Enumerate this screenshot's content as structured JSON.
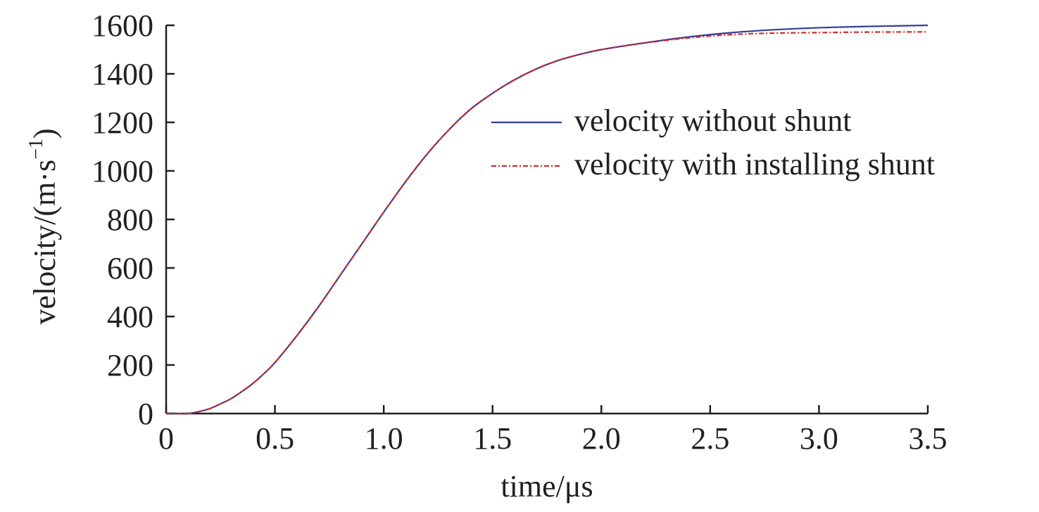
{
  "chart_data": {
    "type": "line",
    "xlabel": "time/μs",
    "ylabel_main": "velocity/(m·s",
    "ylabel_sup": "−1",
    "ylabel_close": ")",
    "xlim": [
      0,
      3.5
    ],
    "ylim": [
      0,
      1600
    ],
    "xticks": [
      {
        "value": 0,
        "label": "0"
      },
      {
        "value": 0.5,
        "label": "0.5"
      },
      {
        "value": 1.0,
        "label": "1.0"
      },
      {
        "value": 1.5,
        "label": "1.5"
      },
      {
        "value": 2.0,
        "label": "2.0"
      },
      {
        "value": 2.5,
        "label": "2.5"
      },
      {
        "value": 3.0,
        "label": "3.0"
      },
      {
        "value": 3.5,
        "label": "3.5"
      }
    ],
    "yticks": [
      {
        "value": 0,
        "label": "0"
      },
      {
        "value": 200,
        "label": "200"
      },
      {
        "value": 400,
        "label": "400"
      },
      {
        "value": 600,
        "label": "600"
      },
      {
        "value": 800,
        "label": "800"
      },
      {
        "value": 1000,
        "label": "1000"
      },
      {
        "value": 1200,
        "label": "1200"
      },
      {
        "value": 1400,
        "label": "1400"
      },
      {
        "value": 1600,
        "label": "1600"
      }
    ],
    "grid": false,
    "legend_position": "right, upper-middle",
    "series": [
      {
        "name": "velocity without shunt",
        "color": "#2e3d99",
        "style": "solid",
        "x": [
          0.0,
          0.1,
          0.15,
          0.2,
          0.25,
          0.3,
          0.35,
          0.4,
          0.45,
          0.5,
          0.6,
          0.7,
          0.8,
          0.9,
          1.0,
          1.1,
          1.2,
          1.3,
          1.4,
          1.5,
          1.6,
          1.7,
          1.8,
          1.9,
          2.0,
          2.2,
          2.4,
          2.6,
          2.8,
          3.0,
          3.2,
          3.5
        ],
        "y": [
          0,
          0,
          8,
          20,
          40,
          62,
          92,
          125,
          165,
          210,
          320,
          440,
          570,
          700,
          830,
          955,
          1070,
          1170,
          1255,
          1320,
          1375,
          1420,
          1455,
          1480,
          1500,
          1528,
          1552,
          1570,
          1582,
          1590,
          1595,
          1600
        ]
      },
      {
        "name": "velocity with installing shunt",
        "color": "#d62728",
        "style": "dashdot",
        "x": [
          0.0,
          0.1,
          0.15,
          0.2,
          0.25,
          0.3,
          0.35,
          0.4,
          0.45,
          0.5,
          0.6,
          0.7,
          0.8,
          0.9,
          1.0,
          1.1,
          1.2,
          1.3,
          1.4,
          1.5,
          1.6,
          1.7,
          1.8,
          1.9,
          2.0,
          2.2,
          2.4,
          2.6,
          2.8,
          3.0,
          3.2,
          3.5
        ],
        "y": [
          0,
          0,
          8,
          20,
          40,
          62,
          92,
          125,
          165,
          210,
          320,
          440,
          570,
          700,
          830,
          955,
          1070,
          1170,
          1255,
          1320,
          1375,
          1420,
          1455,
          1480,
          1500,
          1527,
          1548,
          1562,
          1568,
          1570,
          1572,
          1573
        ]
      }
    ]
  }
}
